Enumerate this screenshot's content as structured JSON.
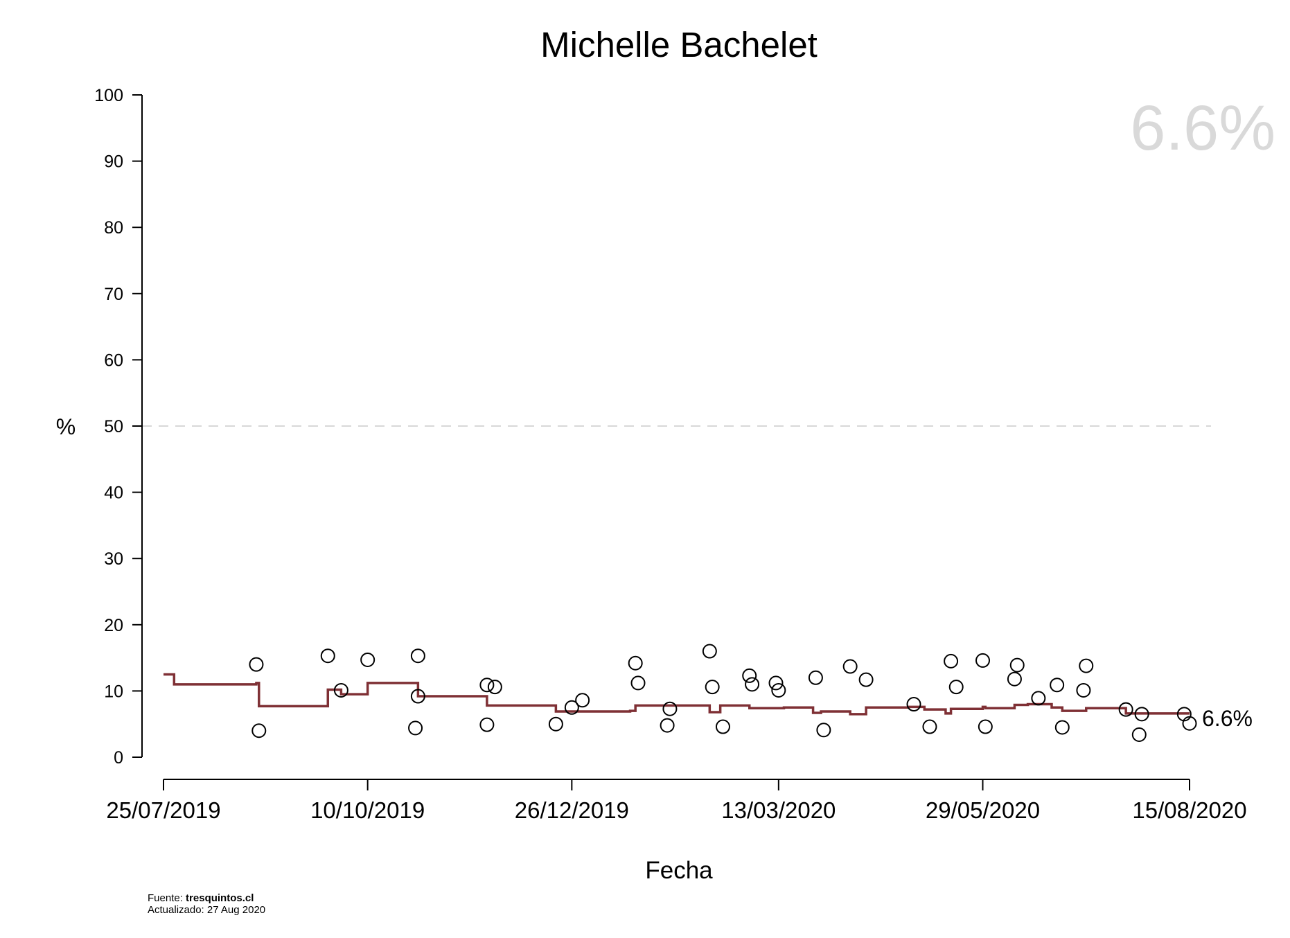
{
  "chart_data": {
    "type": "scatter",
    "title": "Michelle Bachelet",
    "xlabel": "Fecha",
    "ylabel": "%",
    "ylim": [
      0,
      100
    ],
    "xlim": [
      "2019-07-25",
      "2020-08-15"
    ],
    "yticks": [
      0,
      10,
      20,
      30,
      40,
      50,
      60,
      70,
      80,
      90,
      100
    ],
    "xticks": [
      "2019-07-25",
      "2019-10-10",
      "2019-12-26",
      "2020-03-13",
      "2020-05-29",
      "2020-08-15"
    ],
    "xtick_labels": [
      "25/07/2019",
      "10/10/2019",
      "26/12/2019",
      "13/03/2020",
      "29/05/2020",
      "15/08/2020"
    ],
    "reference_line": 50,
    "big_value": "6.6%",
    "end_label": "6.6%",
    "colors": {
      "trend": "#7f3035",
      "points": "#000000",
      "reference": "#cccccc",
      "big_value": "#d9d9d9"
    },
    "series": [
      {
        "type": "points",
        "x": [
          "2019-08-29",
          "2019-08-30",
          "2019-09-25",
          "2019-09-30",
          "2019-10-10",
          "2019-10-28",
          "2019-10-29",
          "2019-10-29",
          "2019-11-24",
          "2019-11-24",
          "2019-11-27",
          "2019-12-20",
          "2019-12-26",
          "2019-12-30",
          "2020-01-19",
          "2020-01-20",
          "2020-01-31",
          "2020-02-01",
          "2020-02-16",
          "2020-02-17",
          "2020-02-21",
          "2020-03-02",
          "2020-03-03",
          "2020-03-12",
          "2020-03-13",
          "2020-03-27",
          "2020-03-30",
          "2020-04-09",
          "2020-04-15",
          "2020-05-03",
          "2020-05-09",
          "2020-05-17",
          "2020-05-19",
          "2020-05-29",
          "2020-05-30",
          "2020-06-10",
          "2020-06-11",
          "2020-06-19",
          "2020-06-26",
          "2020-06-28",
          "2020-07-06",
          "2020-07-07",
          "2020-07-22",
          "2020-07-27",
          "2020-07-28",
          "2020-08-13",
          "2020-08-15"
        ],
        "y": [
          14.0,
          4.0,
          15.3,
          10.1,
          14.7,
          4.4,
          9.2,
          15.3,
          4.9,
          10.9,
          10.6,
          5.0,
          7.5,
          8.6,
          14.2,
          11.2,
          4.8,
          7.3,
          16.0,
          10.6,
          4.6,
          12.3,
          11.0,
          11.2,
          10.1,
          12.0,
          4.1,
          13.7,
          11.7,
          8.0,
          4.6,
          14.5,
          10.6,
          14.6,
          4.6,
          11.8,
          13.9,
          8.9,
          10.9,
          4.5,
          10.1,
          13.8,
          7.2,
          3.4,
          6.5,
          6.5,
          5.1
        ]
      },
      {
        "type": "step",
        "x": [
          "2019-07-25",
          "2019-07-29",
          "2019-08-29",
          "2019-08-30",
          "2019-09-25",
          "2019-09-30",
          "2019-10-10",
          "2019-10-28",
          "2019-10-29",
          "2019-11-24",
          "2019-12-20",
          "2020-01-17",
          "2020-01-19",
          "2020-01-30",
          "2020-02-16",
          "2020-02-20",
          "2020-03-02",
          "2020-03-15",
          "2020-03-26",
          "2020-03-29",
          "2020-04-09",
          "2020-04-15",
          "2020-04-22",
          "2020-05-01",
          "2020-05-07",
          "2020-05-15",
          "2020-05-17",
          "2020-05-29",
          "2020-05-30",
          "2020-06-10",
          "2020-06-15",
          "2020-06-24",
          "2020-06-28",
          "2020-07-07",
          "2020-07-22",
          "2020-08-15"
        ],
        "y": [
          12.5,
          11.0,
          11.2,
          7.7,
          10.2,
          9.5,
          11.2,
          11.2,
          9.2,
          7.8,
          6.9,
          7.0,
          7.8,
          7.8,
          6.8,
          7.8,
          7.4,
          7.5,
          6.7,
          6.9,
          6.5,
          7.5,
          7.5,
          7.6,
          7.2,
          6.6,
          7.3,
          7.6,
          7.4,
          7.9,
          8.0,
          7.5,
          7.0,
          7.4,
          6.6,
          6.6
        ]
      }
    ]
  },
  "footer": {
    "source_prefix": "Fuente: ",
    "source_name": "tresquintos.cl",
    "updated": "Actualizado: 27 Aug 2020"
  }
}
